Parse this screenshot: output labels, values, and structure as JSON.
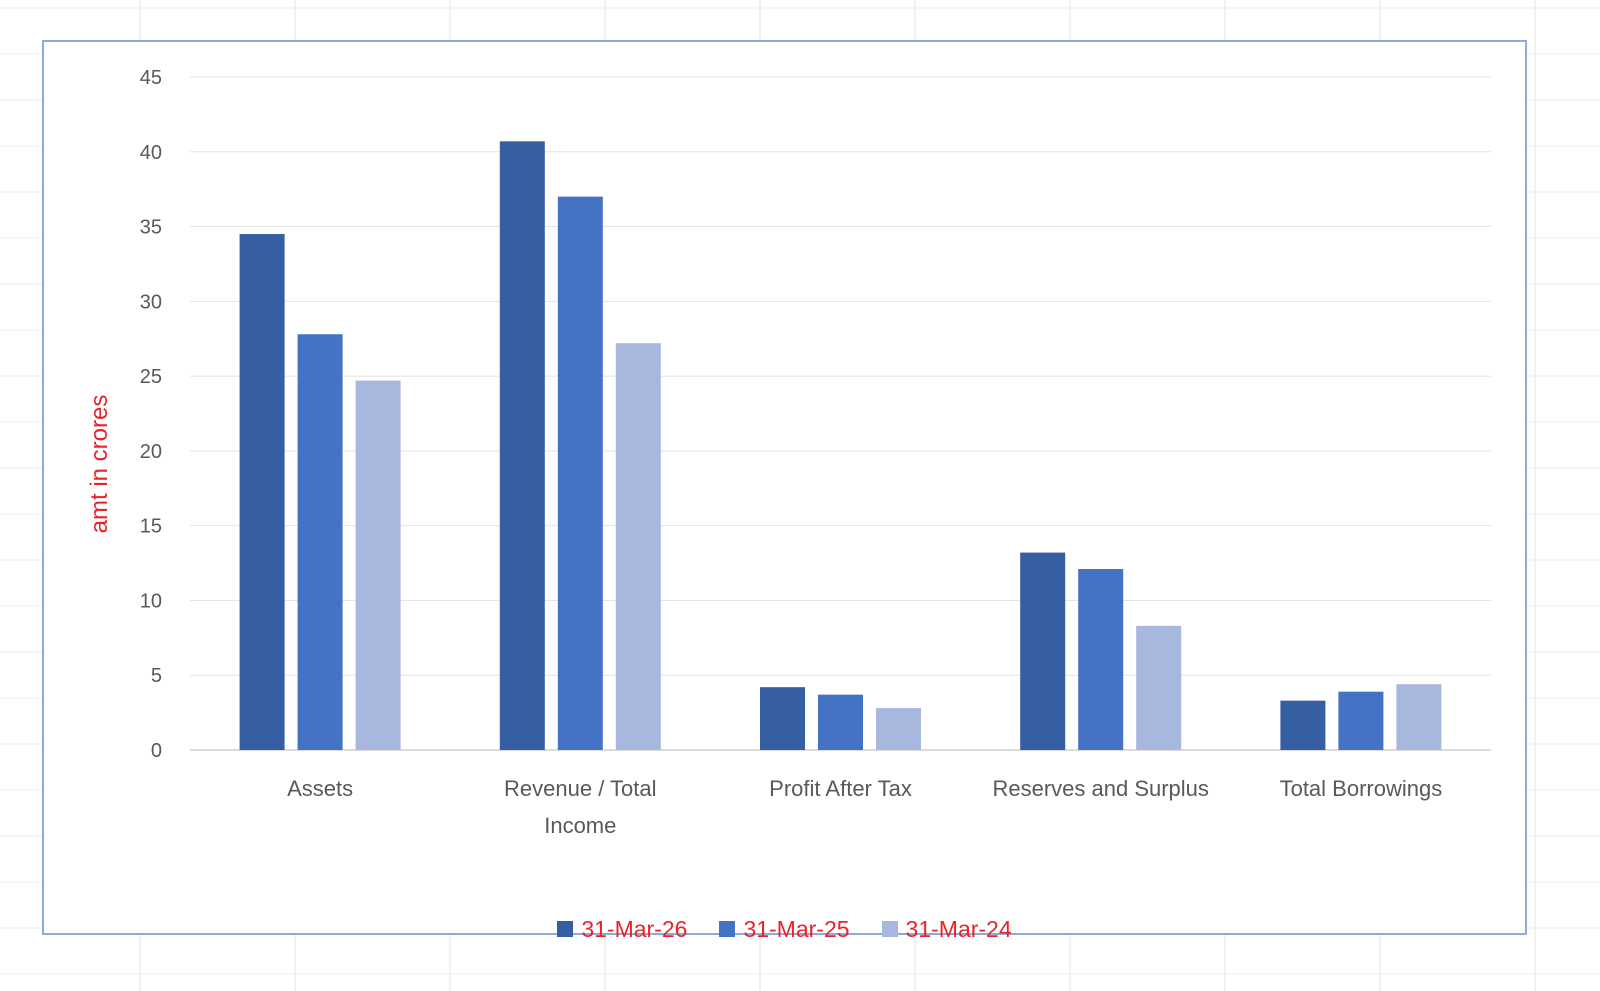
{
  "chart_data": {
    "type": "bar",
    "title": "",
    "xlabel": "",
    "ylabel": "amt in crores",
    "ylim": [
      0,
      45
    ],
    "yticks": [
      0,
      5,
      10,
      15,
      20,
      25,
      30,
      35,
      40,
      45
    ],
    "grid": true,
    "legend_position": "bottom",
    "categories": [
      "Assets",
      "Revenue / Total Income",
      "Profit After Tax",
      "Reserves and Surplus",
      "Total Borrowings"
    ],
    "category_lines": [
      [
        "Assets"
      ],
      [
        "Revenue / Total",
        "Income"
      ],
      [
        "Profit After Tax"
      ],
      [
        "Reserves and Surplus"
      ],
      [
        "Total Borrowings"
      ]
    ],
    "series": [
      {
        "name": "31-Mar-26",
        "color": "#355ea3",
        "values": [
          34.5,
          40.7,
          4.2,
          13.2,
          3.3
        ]
      },
      {
        "name": "31-Mar-25",
        "color": "#4472c4",
        "values": [
          27.8,
          37.0,
          3.7,
          12.1,
          3.9
        ]
      },
      {
        "name": "31-Mar-24",
        "color": "#a8b7de",
        "values": [
          24.7,
          27.2,
          2.8,
          8.3,
          4.4
        ]
      }
    ]
  }
}
